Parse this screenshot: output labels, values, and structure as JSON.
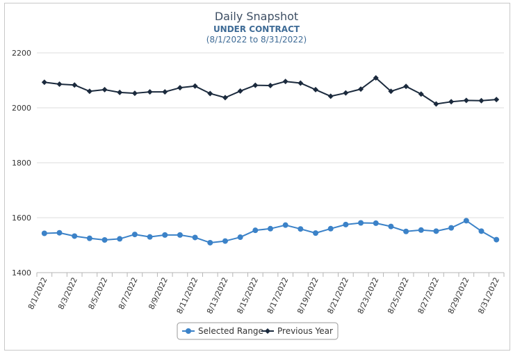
{
  "chart_data": {
    "type": "line",
    "title": "Daily Snapshot",
    "subtitle": "UNDER CONTRACT",
    "subtitle2": "(8/1/2022 to 8/31/2022)",
    "xlabel": "",
    "ylabel": "",
    "ylim": [
      1400,
      2200
    ],
    "yticks": [
      1400,
      1600,
      1800,
      2000,
      2200
    ],
    "grid": true,
    "legend_position": "bottom-center",
    "x": [
      "8/1/2022",
      "8/2/2022",
      "8/3/2022",
      "8/4/2022",
      "8/5/2022",
      "8/6/2022",
      "8/7/2022",
      "8/8/2022",
      "8/9/2022",
      "8/10/2022",
      "8/11/2022",
      "8/12/2022",
      "8/13/2022",
      "8/14/2022",
      "8/15/2022",
      "8/16/2022",
      "8/17/2022",
      "8/18/2022",
      "8/19/2022",
      "8/20/2022",
      "8/21/2022",
      "8/22/2022",
      "8/23/2022",
      "8/24/2022",
      "8/25/2022",
      "8/26/2022",
      "8/27/2022",
      "8/28/2022",
      "8/29/2022",
      "8/30/2022",
      "8/31/2022"
    ],
    "xtick_labels": [
      "8/1/2022",
      "8/3/2022",
      "8/5/2022",
      "8/7/2022",
      "8/9/2022",
      "8/11/2022",
      "8/13/2022",
      "8/15/2022",
      "8/17/2022",
      "8/19/2022",
      "8/21/2022",
      "8/23/2022",
      "8/25/2022",
      "8/27/2022",
      "8/29/2022",
      "8/31/2022"
    ],
    "series": [
      {
        "name": "Selected Range",
        "color": "#3b82c8",
        "marker": "circle",
        "values": [
          1543,
          1545,
          1533,
          1525,
          1519,
          1523,
          1539,
          1530,
          1537,
          1537,
          1528,
          1509,
          1515,
          1529,
          1554,
          1560,
          1573,
          1559,
          1544,
          1560,
          1575,
          1581,
          1580,
          1568,
          1550,
          1555,
          1551,
          1563,
          1589,
          1551,
          1520
        ]
      },
      {
        "name": "Previous Year",
        "color": "#1b2a3d",
        "marker": "diamond",
        "values": [
          2093,
          2086,
          2083,
          2060,
          2066,
          2056,
          2053,
          2058,
          2058,
          2073,
          2079,
          2052,
          2037,
          2061,
          2082,
          2081,
          2096,
          2090,
          2066,
          2042,
          2054,
          2068,
          2109,
          2060,
          2078,
          2050,
          2014,
          2022,
          2027,
          2026,
          2030
        ]
      }
    ]
  }
}
